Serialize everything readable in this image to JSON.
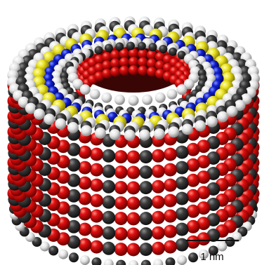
{
  "scale_bar": {
    "label": "1 nm"
  }
}
